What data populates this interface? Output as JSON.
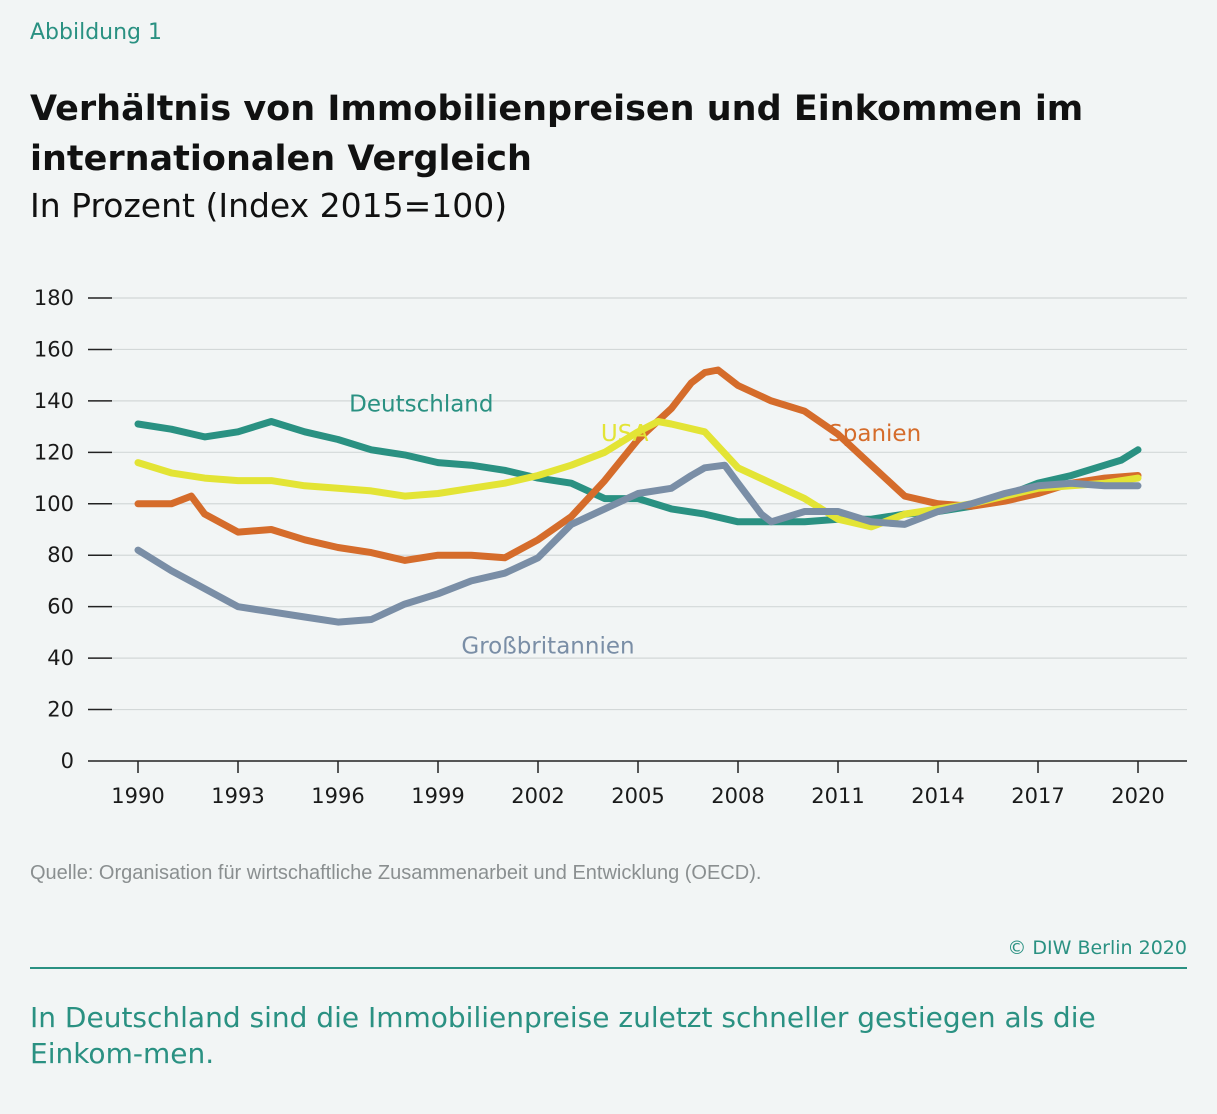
{
  "figure_label": "Abbildung 1",
  "title": "Verhältnis von Immobilienpreisen und Einkommen im internationalen Vergleich",
  "subtitle": "In Prozent (Index 2015=100)",
  "source": "Quelle: Organisation für wirtschaftliche Zusammenarbeit und Entwicklung (OECD).",
  "copyright": "© DIW Berlin 2020",
  "caption": "In Deutschland sind die Immobilienpreise zuletzt schneller gestiegen als die Einkom-men.",
  "chart_data": {
    "type": "line",
    "ylim": [
      0,
      180
    ],
    "yticks": [
      0,
      20,
      40,
      60,
      80,
      100,
      120,
      140,
      160,
      180
    ],
    "xlim": [
      1990,
      2020
    ],
    "xticks": [
      1990,
      1993,
      1996,
      1999,
      2002,
      2005,
      2008,
      2011,
      2014,
      2017,
      2020
    ],
    "grid": true,
    "legend": "inline labels",
    "series": [
      {
        "name": "Deutschland",
        "color": "#2a9182",
        "x": [
          1990,
          1991,
          1992,
          1993,
          1994,
          1995,
          1996,
          1997,
          1998,
          1999,
          2000,
          2001,
          2002,
          2003,
          2004,
          2005,
          2006,
          2007,
          2008,
          2009,
          2010,
          2011,
          2012,
          2013,
          2014,
          2015,
          2016,
          2017,
          2018,
          2019,
          2019.5,
          2020
        ],
        "y": [
          131,
          129,
          126,
          128,
          132,
          128,
          125,
          121,
          119,
          116,
          115,
          113,
          110,
          108,
          102,
          102,
          98,
          96,
          93,
          93,
          93,
          94,
          94,
          96,
          97,
          99,
          103,
          108,
          111,
          115,
          117,
          121
        ]
      },
      {
        "name": "Spanien",
        "color": "#d56c2b",
        "x": [
          1990,
          1991,
          1991.6,
          1992,
          1993,
          1994,
          1995,
          1996,
          1997,
          1998,
          1999,
          2000,
          2001,
          2002,
          2003,
          2004,
          2005,
          2006,
          2006.6,
          2007,
          2007.4,
          2008,
          2009,
          2010,
          2011,
          2012,
          2013,
          2014,
          2015,
          2016,
          2017,
          2018,
          2019,
          2020
        ],
        "y": [
          100,
          100,
          103,
          96,
          89,
          90,
          86,
          83,
          81,
          78,
          80,
          80,
          79,
          86,
          95,
          109,
          125,
          137,
          147,
          151,
          152,
          146,
          140,
          136,
          127,
          115,
          103,
          100,
          99,
          101,
          104,
          108,
          110,
          111
        ]
      },
      {
        "name": "USA",
        "color": "#e3e435",
        "x": [
          1990,
          1991,
          1992,
          1993,
          1994,
          1995,
          1996,
          1997,
          1998,
          1999,
          2000,
          2001,
          2002,
          2003,
          2004,
          2005,
          2005.6,
          2006,
          2007,
          2008,
          2009,
          2010,
          2011,
          2012,
          2013,
          2014,
          2015,
          2016,
          2017,
          2018,
          2019,
          2020
        ],
        "y": [
          116,
          112,
          110,
          109,
          109,
          107,
          106,
          105,
          103,
          104,
          106,
          108,
          111,
          115,
          120,
          128,
          132,
          131,
          128,
          114,
          108,
          102,
          94,
          91,
          96,
          98,
          100,
          103,
          106,
          107,
          108,
          110
        ]
      },
      {
        "name": "Großbritannien",
        "color": "#7a8ea6",
        "x": [
          1990,
          1991,
          1992,
          1993,
          1994,
          1995,
          1996,
          1997,
          1998,
          1999,
          2000,
          2001,
          2002,
          2003,
          2004,
          2005,
          2006,
          2006.6,
          2007,
          2007.6,
          2008,
          2008.7,
          2009,
          2010,
          2011,
          2012,
          2013,
          2014,
          2015,
          2016,
          2017,
          2018,
          2019,
          2020
        ],
        "y": [
          82,
          74,
          67,
          60,
          58,
          56,
          54,
          55,
          61,
          65,
          70,
          73,
          79,
          92,
          98,
          104,
          106,
          111,
          114,
          115,
          108,
          96,
          93,
          97,
          97,
          93,
          92,
          97,
          100,
          104,
          107,
          108,
          107,
          107
        ]
      }
    ]
  }
}
